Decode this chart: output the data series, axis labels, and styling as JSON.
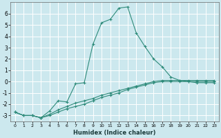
{
  "title": "",
  "xlabel": "Humidex (Indice chaleur)",
  "ylabel": "",
  "bg_color": "#cce8ee",
  "grid_color": "#ffffff",
  "line_color": "#2e8b7a",
  "xlim": [
    -0.5,
    23.5
  ],
  "ylim": [
    -3.5,
    7.0
  ],
  "xticks": [
    0,
    1,
    2,
    3,
    4,
    5,
    6,
    7,
    8,
    9,
    10,
    11,
    12,
    13,
    14,
    15,
    16,
    17,
    18,
    19,
    20,
    21,
    22,
    23
  ],
  "yticks": [
    -3,
    -2,
    -1,
    0,
    1,
    2,
    3,
    4,
    5,
    6
  ],
  "curve1_x": [
    0,
    1,
    2,
    3,
    4,
    5,
    6,
    7,
    8,
    9,
    10,
    11,
    12,
    13,
    14,
    15,
    16,
    17,
    18,
    19,
    20,
    21,
    22,
    23
  ],
  "curve1_y": [
    -2.7,
    -3.0,
    -3.0,
    -3.2,
    -2.6,
    -1.7,
    -1.8,
    -0.2,
    -0.1,
    3.3,
    5.2,
    5.5,
    6.5,
    6.6,
    4.3,
    3.1,
    2.0,
    1.3,
    0.4,
    0.1,
    0.0,
    -0.1,
    -0.1,
    -0.1
  ],
  "curve2_x": [
    0,
    1,
    2,
    3,
    4,
    5,
    6,
    7,
    8,
    9,
    10,
    11,
    12,
    13,
    14,
    15,
    16,
    17,
    18,
    19,
    20,
    21,
    22,
    23
  ],
  "curve2_y": [
    -2.7,
    -3.0,
    -3.0,
    -3.2,
    -2.9,
    -2.5,
    -2.2,
    -1.9,
    -1.7,
    -1.5,
    -1.2,
    -1.0,
    -0.8,
    -0.6,
    -0.4,
    -0.2,
    0.0,
    0.1,
    0.1,
    0.1,
    0.1,
    0.1,
    0.1,
    0.1
  ],
  "curve3_x": [
    0,
    1,
    2,
    3,
    4,
    5,
    6,
    7,
    8,
    9,
    10,
    11,
    12,
    13,
    14,
    15,
    16,
    17,
    18,
    19,
    20,
    21,
    22,
    23
  ],
  "curve3_y": [
    -2.7,
    -3.0,
    -3.0,
    -3.2,
    -3.0,
    -2.7,
    -2.4,
    -2.2,
    -2.0,
    -1.7,
    -1.4,
    -1.2,
    -1.0,
    -0.7,
    -0.5,
    -0.3,
    -0.1,
    0.0,
    0.0,
    0.0,
    0.0,
    0.0,
    0.0,
    0.0
  ],
  "xlabel_fontsize": 6.0,
  "xtick_fontsize": 4.5,
  "ytick_fontsize": 5.5,
  "linewidth": 0.8,
  "markersize": 3.0
}
